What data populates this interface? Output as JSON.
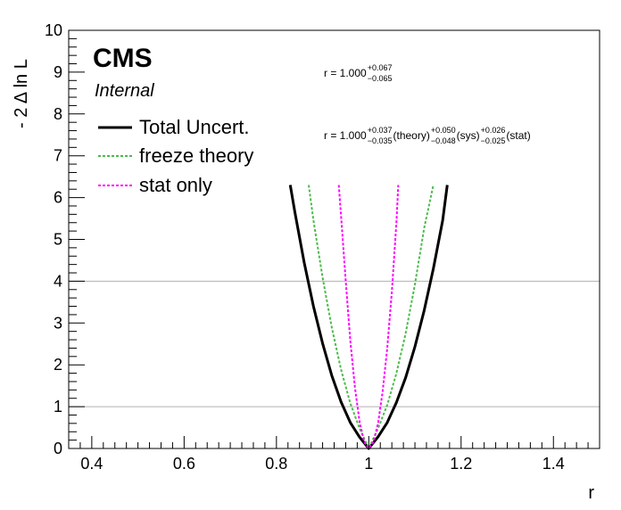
{
  "chart_data": {
    "type": "line",
    "title": "",
    "xlabel": "r",
    "ylabel": "- 2 Δ ln L",
    "xlim": [
      0.35,
      1.5
    ],
    "ylim": [
      0,
      10
    ],
    "x_ticks": [
      0.4,
      0.6,
      0.8,
      1,
      1.2,
      1.4
    ],
    "x_tick_labels": [
      "0.4",
      "0.6",
      "0.8",
      "1",
      "1.2",
      "1.4"
    ],
    "y_ticks": [
      0,
      1,
      2,
      3,
      4,
      5,
      6,
      7,
      8,
      9,
      10
    ],
    "y_tick_labels": [
      "0",
      "1",
      "2",
      "3",
      "4",
      "5",
      "6",
      "7",
      "8",
      "9",
      "10"
    ],
    "reference_lines": [
      1,
      4
    ],
    "grid": false,
    "legend_position": "top-left",
    "experiment_label": "CMS",
    "status_label": "Internal",
    "annotations": [
      {
        "id": "total",
        "parts": [
          {
            "text": "r = 1.000"
          },
          {
            "sup": "+0.067",
            "sub": "−0.065"
          }
        ]
      },
      {
        "id": "breakdown",
        "parts": [
          {
            "text": "r = 1.000"
          },
          {
            "sup": "+0.037",
            "sub": "−0.035"
          },
          {
            "text": "(theory)"
          },
          {
            "sup": "+0.050",
            "sub": "−0.048"
          },
          {
            "text": "(sys)"
          },
          {
            "sup": "+0.026",
            "sub": "−0.025"
          },
          {
            "text": "(stat)"
          }
        ]
      }
    ],
    "series": [
      {
        "name": "Total Uncert.",
        "color": "#000000",
        "style": "solid",
        "x": [
          0.83,
          0.84,
          0.86,
          0.88,
          0.9,
          0.92,
          0.94,
          0.96,
          0.98,
          1.0,
          1.02,
          1.04,
          1.06,
          1.08,
          1.1,
          1.12,
          1.14,
          1.16,
          1.17
        ],
        "y": [
          6.3,
          5.65,
          4.45,
          3.41,
          2.51,
          1.74,
          1.11,
          0.62,
          0.27,
          0.0,
          0.28,
          0.62,
          1.1,
          1.7,
          2.43,
          3.3,
          4.3,
          5.45,
          6.3
        ]
      },
      {
        "name": "freeze theory",
        "color": "#4dbb4d",
        "style": "dashed",
        "x": [
          0.87,
          0.88,
          0.9,
          0.92,
          0.94,
          0.96,
          0.98,
          1.0,
          1.02,
          1.04,
          1.06,
          1.08,
          1.1,
          1.12,
          1.14
        ],
        "y": [
          6.3,
          5.47,
          4.08,
          2.89,
          1.88,
          1.08,
          0.48,
          0.0,
          0.48,
          1.04,
          1.8,
          2.76,
          3.92,
          5.27,
          6.3
        ]
      },
      {
        "name": "stat only",
        "color": "#ff00ff",
        "style": "dashed",
        "x": [
          0.935,
          0.94,
          0.95,
          0.96,
          0.97,
          0.98,
          0.99,
          1.0,
          1.01,
          1.02,
          1.03,
          1.04,
          1.05,
          1.06,
          1.064
        ],
        "y": [
          6.3,
          5.55,
          4.03,
          2.58,
          1.46,
          0.64,
          0.16,
          0.0,
          0.15,
          0.6,
          1.35,
          2.4,
          3.75,
          5.4,
          6.3
        ]
      }
    ]
  }
}
